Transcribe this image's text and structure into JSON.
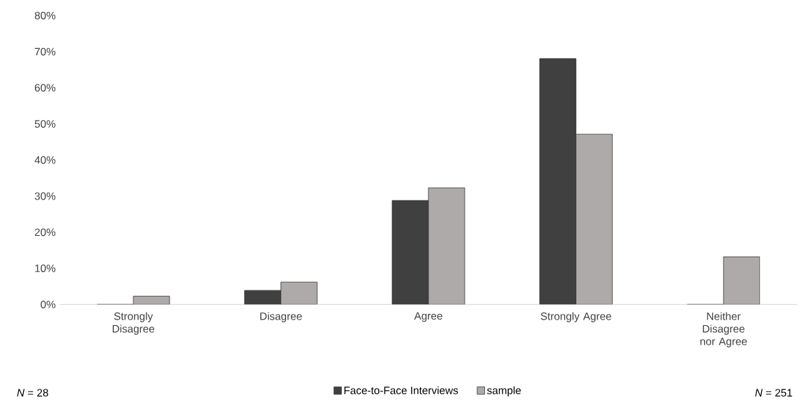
{
  "chart_data": {
    "type": "bar",
    "categories": [
      "Strongly Disagree",
      "Disagree",
      "Agree",
      "Strongly Agree",
      "Neither Disagree nor Agree"
    ],
    "series": [
      {
        "name": "Face-to-Face Interviews",
        "color": "#404040",
        "values": [
          0,
          3.9,
          28.8,
          68.1,
          0
        ]
      },
      {
        "name": "sample",
        "color": "#aeaaaa",
        "values": [
          2.3,
          6.2,
          32.3,
          47.2,
          13.2
        ]
      }
    ],
    "ylim": [
      0,
      80
    ],
    "yticks": [
      {
        "value": 0,
        "label": "0%"
      },
      {
        "value": 10,
        "label": "10%"
      },
      {
        "value": 20,
        "label": "20%"
      },
      {
        "value": 30,
        "label": "30%"
      },
      {
        "value": 40,
        "label": "40%"
      },
      {
        "value": 50,
        "label": "50%"
      },
      {
        "value": 60,
        "label": "60%"
      },
      {
        "value": 70,
        "label": "70%"
      },
      {
        "value": 80,
        "label": "80%"
      }
    ],
    "legend": "bottom",
    "annotations": [
      "*N* = 28",
      "*N* = 251"
    ]
  }
}
